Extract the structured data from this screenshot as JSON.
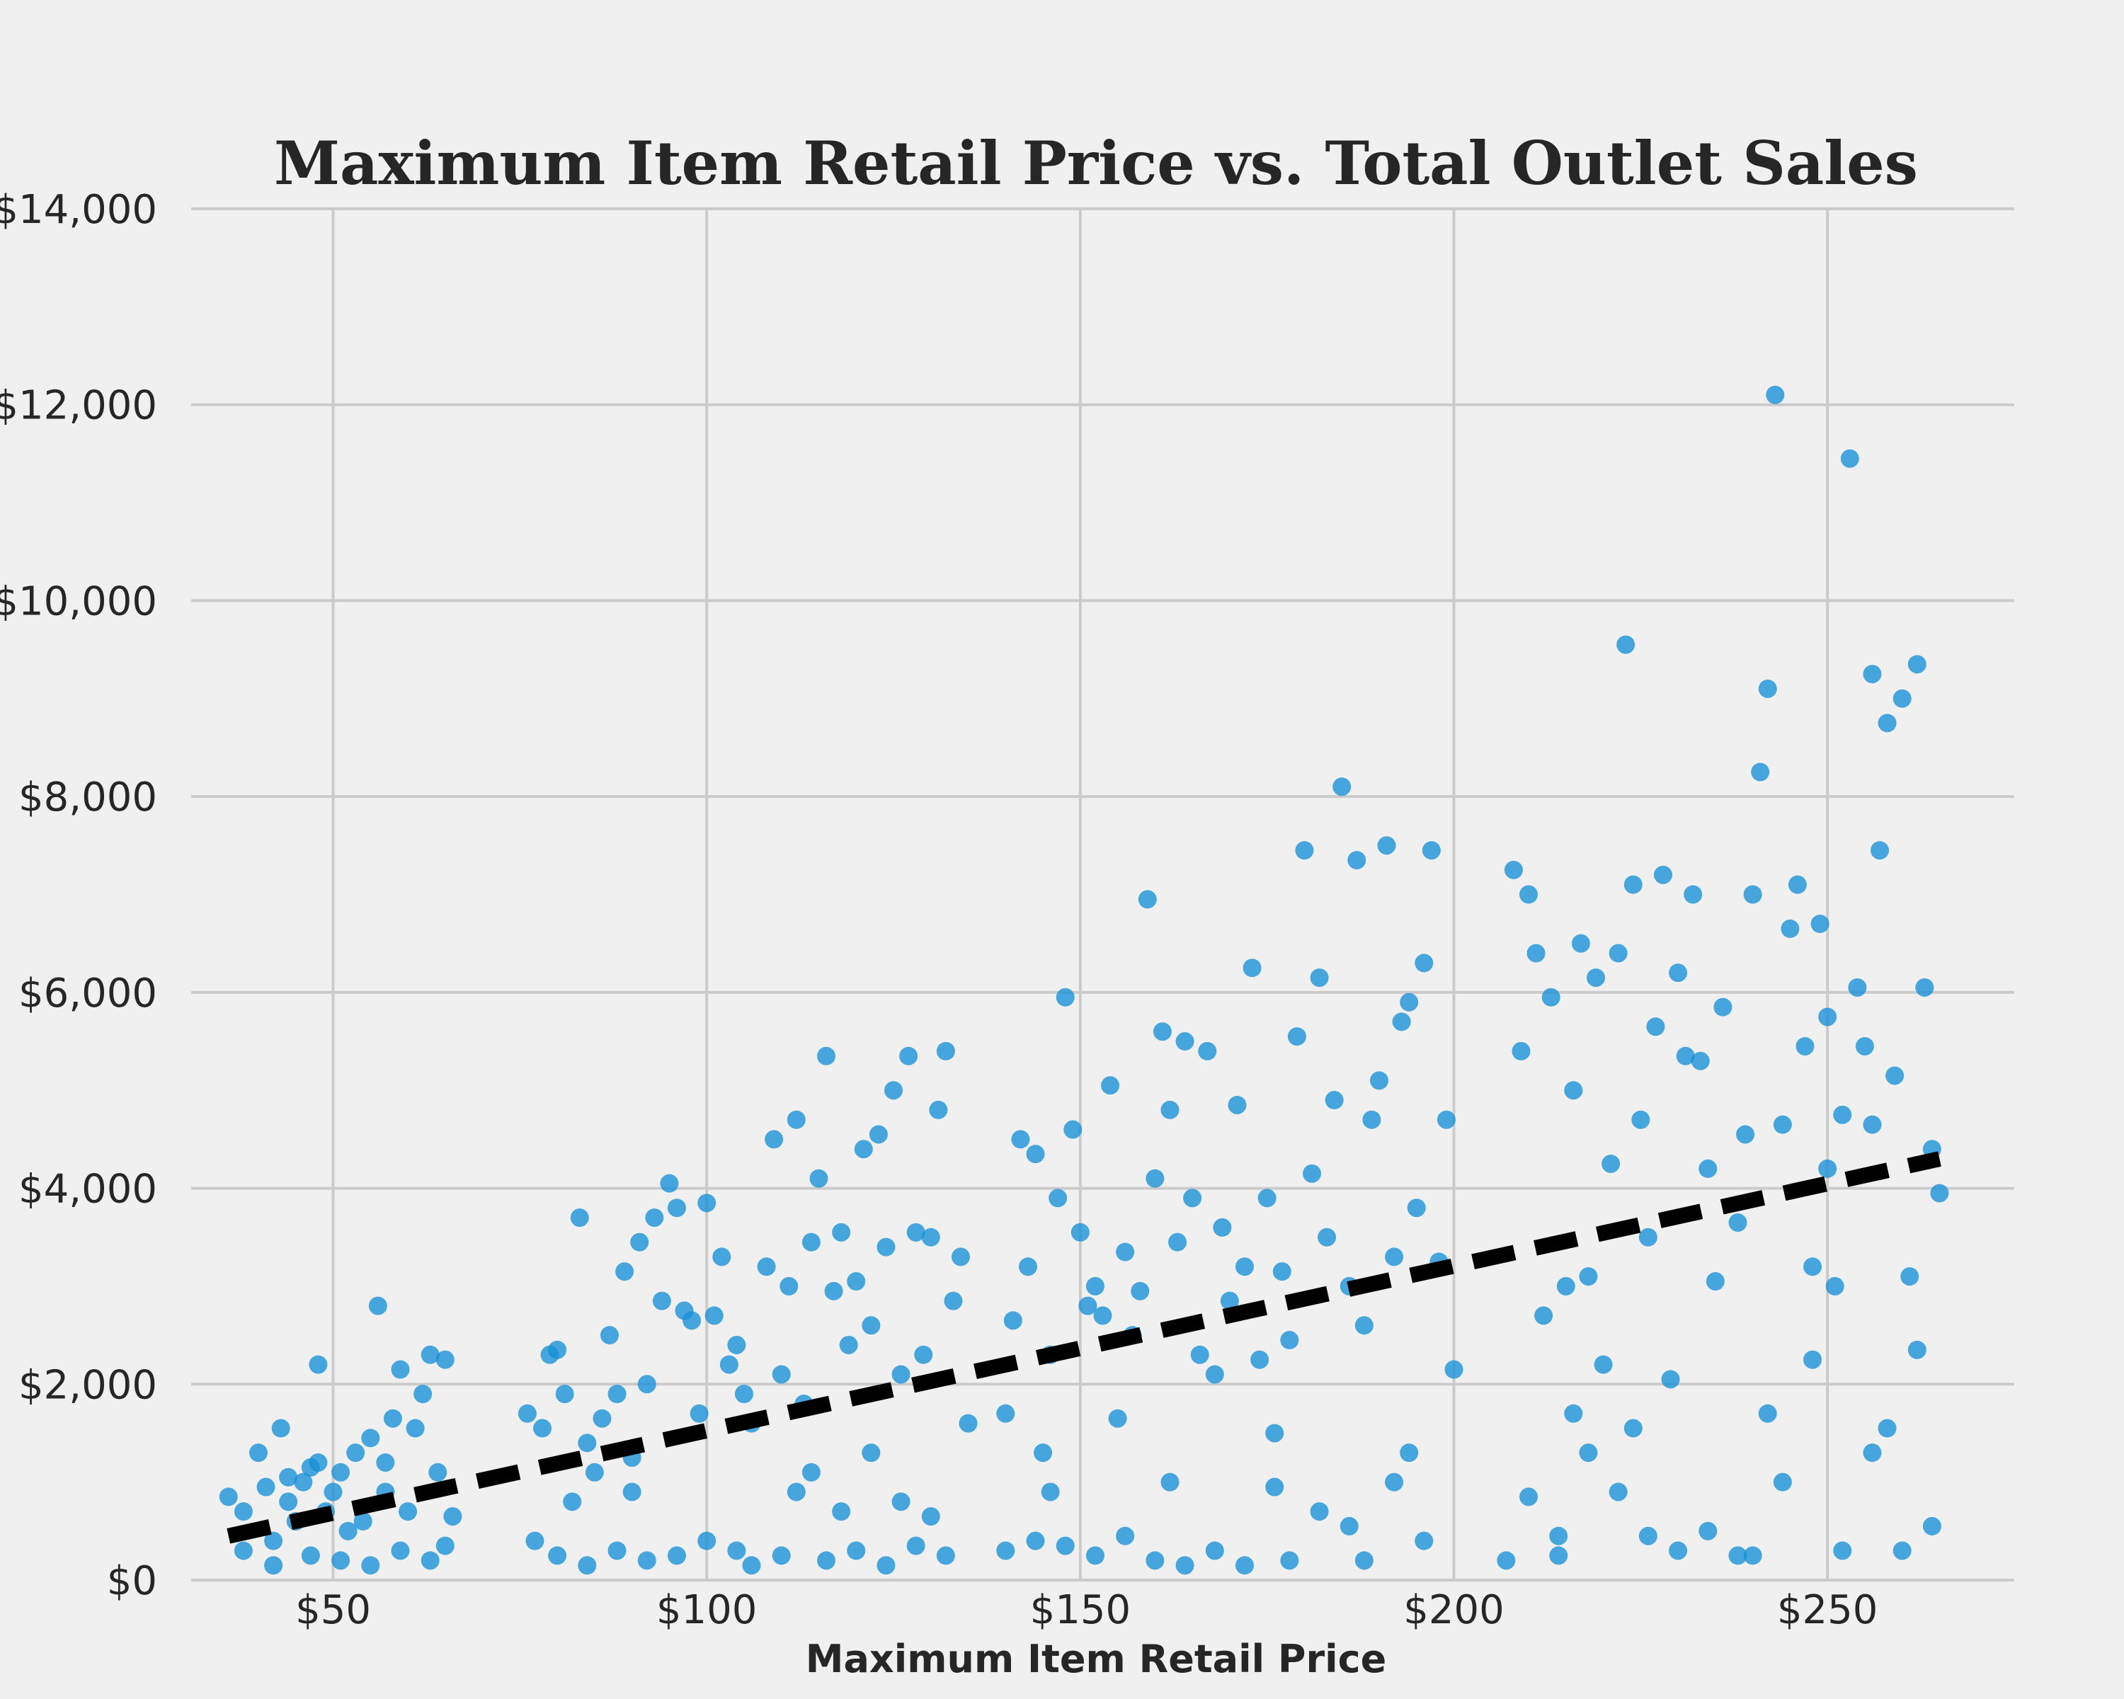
{
  "chart_data": {
    "type": "scatter",
    "title": "Maximum Item Retail Price vs. Total Outlet Sales",
    "xlabel": "Maximum Item Retail Price",
    "ylabel": "",
    "xlim": [
      31,
      275
    ],
    "ylim": [
      0,
      14000
    ],
    "x_ticks": [
      "$50",
      "$100",
      "$150",
      "$200",
      "$250"
    ],
    "y_ticks": [
      "$0",
      "$2,000",
      "$4,000",
      "$6,000",
      "$8,000",
      "$10,000",
      "$12,000",
      "$14,000"
    ],
    "grid": true,
    "colors": {
      "points": "#148fd6",
      "trend": "#000000",
      "background": "#f0f0f0",
      "grid": "#cbcbcb"
    },
    "series": [
      {
        "type": "scatter",
        "points": [
          [
            36,
            850
          ],
          [
            38,
            700
          ],
          [
            40,
            1300
          ],
          [
            41,
            950
          ],
          [
            42,
            400
          ],
          [
            43,
            1550
          ],
          [
            44,
            800
          ],
          [
            45,
            600
          ],
          [
            46,
            1000
          ],
          [
            47,
            1150
          ],
          [
            48,
            1200
          ],
          [
            48,
            2200
          ],
          [
            49,
            700
          ],
          [
            50,
            900
          ],
          [
            51,
            1100
          ],
          [
            52,
            500
          ],
          [
            53,
            1300
          ],
          [
            54,
            600
          ],
          [
            55,
            1450
          ],
          [
            56,
            2800
          ],
          [
            57,
            900
          ],
          [
            58,
            1650
          ],
          [
            59,
            2150
          ],
          [
            60,
            700
          ],
          [
            61,
            1550
          ],
          [
            62,
            1900
          ],
          [
            63,
            2300
          ],
          [
            64,
            1100
          ],
          [
            65,
            2250
          ],
          [
            66,
            650
          ],
          [
            38,
            300
          ],
          [
            42,
            150
          ],
          [
            47,
            250
          ],
          [
            51,
            200
          ],
          [
            55,
            150
          ],
          [
            59,
            300
          ],
          [
            63,
            200
          ],
          [
            65,
            350
          ],
          [
            44,
            1050
          ],
          [
            57,
            1200
          ],
          [
            76,
            1700
          ],
          [
            78,
            1550
          ],
          [
            79,
            2300
          ],
          [
            80,
            2350
          ],
          [
            81,
            1900
          ],
          [
            82,
            800
          ],
          [
            83,
            3700
          ],
          [
            84,
            1400
          ],
          [
            85,
            1100
          ],
          [
            86,
            1650
          ],
          [
            87,
            2500
          ],
          [
            88,
            1900
          ],
          [
            89,
            3150
          ],
          [
            90,
            1250
          ],
          [
            91,
            3450
          ],
          [
            92,
            2000
          ],
          [
            93,
            3700
          ],
          [
            94,
            2850
          ],
          [
            95,
            4050
          ],
          [
            96,
            3800
          ],
          [
            97,
            2750
          ],
          [
            98,
            2650
          ],
          [
            99,
            1700
          ],
          [
            100,
            3850
          ],
          [
            101,
            2700
          ],
          [
            102,
            3300
          ],
          [
            103,
            2200
          ],
          [
            104,
            2400
          ],
          [
            105,
            1900
          ],
          [
            106,
            1600
          ],
          [
            77,
            400
          ],
          [
            80,
            250
          ],
          [
            84,
            150
          ],
          [
            88,
            300
          ],
          [
            92,
            200
          ],
          [
            96,
            250
          ],
          [
            100,
            400
          ],
          [
            104,
            300
          ],
          [
            106,
            150
          ],
          [
            90,
            900
          ],
          [
            108,
            3200
          ],
          [
            109,
            4500
          ],
          [
            110,
            2100
          ],
          [
            111,
            3000
          ],
          [
            112,
            4700
          ],
          [
            113,
            1800
          ],
          [
            114,
            3450
          ],
          [
            115,
            4100
          ],
          [
            116,
            5350
          ],
          [
            117,
            2950
          ],
          [
            118,
            3550
          ],
          [
            119,
            2400
          ],
          [
            120,
            3050
          ],
          [
            121,
            4400
          ],
          [
            122,
            2600
          ],
          [
            123,
            4550
          ],
          [
            124,
            3400
          ],
          [
            125,
            5000
          ],
          [
            126,
            2100
          ],
          [
            127,
            5350
          ],
          [
            128,
            3550
          ],
          [
            129,
            2300
          ],
          [
            130,
            3500
          ],
          [
            131,
            4800
          ],
          [
            132,
            5400
          ],
          [
            133,
            2850
          ],
          [
            134,
            3300
          ],
          [
            135,
            1600
          ],
          [
            110,
            250
          ],
          [
            116,
            200
          ],
          [
            120,
            300
          ],
          [
            124,
            150
          ],
          [
            128,
            350
          ],
          [
            132,
            250
          ],
          [
            112,
            900
          ],
          [
            118,
            700
          ],
          [
            126,
            800
          ],
          [
            130,
            650
          ],
          [
            122,
            1300
          ],
          [
            114,
            1100
          ],
          [
            140,
            1700
          ],
          [
            141,
            2650
          ],
          [
            142,
            4500
          ],
          [
            143,
            3200
          ],
          [
            144,
            4350
          ],
          [
            145,
            1300
          ],
          [
            146,
            2300
          ],
          [
            147,
            3900
          ],
          [
            148,
            5950
          ],
          [
            149,
            4600
          ],
          [
            150,
            3550
          ],
          [
            151,
            2800
          ],
          [
            152,
            3000
          ],
          [
            153,
            2700
          ],
          [
            154,
            5050
          ],
          [
            155,
            1650
          ],
          [
            156,
            3350
          ],
          [
            157,
            2500
          ],
          [
            158,
            2950
          ],
          [
            159,
            6950
          ],
          [
            160,
            4100
          ],
          [
            161,
            5600
          ],
          [
            162,
            4800
          ],
          [
            163,
            3450
          ],
          [
            164,
            5500
          ],
          [
            165,
            3900
          ],
          [
            166,
            2300
          ],
          [
            167,
            5400
          ],
          [
            168,
            2100
          ],
          [
            169,
            3600
          ],
          [
            140,
            300
          ],
          [
            144,
            400
          ],
          [
            148,
            350
          ],
          [
            152,
            250
          ],
          [
            156,
            450
          ],
          [
            160,
            200
          ],
          [
            164,
            150
          ],
          [
            168,
            300
          ],
          [
            146,
            900
          ],
          [
            162,
            1000
          ],
          [
            170,
            2850
          ],
          [
            171,
            4850
          ],
          [
            172,
            3200
          ],
          [
            173,
            6250
          ],
          [
            174,
            2250
          ],
          [
            175,
            3900
          ],
          [
            176,
            1500
          ],
          [
            177,
            3150
          ],
          [
            178,
            2450
          ],
          [
            179,
            5550
          ],
          [
            180,
            7450
          ],
          [
            181,
            4150
          ],
          [
            182,
            6150
          ],
          [
            183,
            3500
          ],
          [
            184,
            4900
          ],
          [
            185,
            8100
          ],
          [
            186,
            3000
          ],
          [
            187,
            7350
          ],
          [
            188,
            2600
          ],
          [
            189,
            4700
          ],
          [
            190,
            5100
          ],
          [
            191,
            7500
          ],
          [
            192,
            3300
          ],
          [
            193,
            5700
          ],
          [
            194,
            5900
          ],
          [
            195,
            3800
          ],
          [
            196,
            6300
          ],
          [
            197,
            7450
          ],
          [
            198,
            3250
          ],
          [
            199,
            4700
          ],
          [
            200,
            2150
          ],
          [
            192,
            1000
          ],
          [
            186,
            550
          ],
          [
            178,
            200
          ],
          [
            172,
            150
          ],
          [
            182,
            700
          ],
          [
            188,
            200
          ],
          [
            196,
            400
          ],
          [
            176,
            950
          ],
          [
            194,
            1300
          ],
          [
            207,
            200
          ],
          [
            208,
            7250
          ],
          [
            209,
            5400
          ],
          [
            210,
            7000
          ],
          [
            211,
            6400
          ],
          [
            212,
            2700
          ],
          [
            213,
            5950
          ],
          [
            214,
            450
          ],
          [
            215,
            3000
          ],
          [
            216,
            5000
          ],
          [
            217,
            6500
          ],
          [
            218,
            3100
          ],
          [
            219,
            6150
          ],
          [
            220,
            2200
          ],
          [
            221,
            4250
          ],
          [
            222,
            6400
          ],
          [
            223,
            9550
          ],
          [
            224,
            7100
          ],
          [
            225,
            4700
          ],
          [
            226,
            3500
          ],
          [
            227,
            5650
          ],
          [
            228,
            7200
          ],
          [
            229,
            2050
          ],
          [
            230,
            6200
          ],
          [
            231,
            5350
          ],
          [
            232,
            7000
          ],
          [
            233,
            5300
          ],
          [
            234,
            4200
          ],
          [
            235,
            3050
          ],
          [
            236,
            5850
          ],
          [
            210,
            850
          ],
          [
            214,
            250
          ],
          [
            218,
            1300
          ],
          [
            222,
            900
          ],
          [
            226,
            450
          ],
          [
            230,
            300
          ],
          [
            234,
            500
          ],
          [
            238,
            250
          ],
          [
            224,
            1550
          ],
          [
            216,
            1700
          ],
          [
            238,
            3650
          ],
          [
            239,
            4550
          ],
          [
            240,
            7000
          ],
          [
            241,
            8250
          ],
          [
            242,
            9100
          ],
          [
            243,
            12100
          ],
          [
            244,
            4650
          ],
          [
            245,
            6650
          ],
          [
            246,
            7100
          ],
          [
            247,
            5450
          ],
          [
            248,
            3200
          ],
          [
            249,
            6700
          ],
          [
            250,
            5750
          ],
          [
            251,
            3000
          ],
          [
            252,
            4750
          ],
          [
            253,
            11450
          ],
          [
            254,
            6050
          ],
          [
            255,
            5450
          ],
          [
            256,
            9250
          ],
          [
            257,
            7450
          ],
          [
            258,
            8750
          ],
          [
            259,
            5150
          ],
          [
            260,
            9000
          ],
          [
            261,
            3100
          ],
          [
            262,
            9350
          ],
          [
            263,
            6050
          ],
          [
            264,
            4400
          ],
          [
            265,
            3950
          ],
          [
            262,
            2350
          ],
          [
            256,
            4650
          ],
          [
            240,
            250
          ],
          [
            244,
            1000
          ],
          [
            248,
            2250
          ],
          [
            252,
            300
          ],
          [
            256,
            1300
          ],
          [
            260,
            300
          ],
          [
            264,
            550
          ],
          [
            258,
            1550
          ],
          [
            250,
            4200
          ],
          [
            242,
            1700
          ]
        ]
      },
      {
        "type": "line",
        "style": "dashed",
        "points": [
          [
            36,
            450
          ],
          [
            265,
            4300
          ]
        ]
      }
    ]
  }
}
